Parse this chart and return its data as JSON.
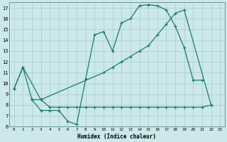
{
  "xlabel": "Humidex (Indice chaleur)",
  "bg_color": "#cce8eb",
  "grid_color": "#b0d4d8",
  "line_color": "#1a7a6e",
  "xlim": [
    -0.5,
    23.5
  ],
  "ylim": [
    6,
    17.5
  ],
  "yticks": [
    6,
    7,
    8,
    9,
    10,
    11,
    12,
    13,
    14,
    15,
    16,
    17
  ],
  "xtick_labels": [
    "0",
    "1",
    "2",
    "3",
    "4",
    "5",
    "6",
    "7",
    "8",
    "9",
    "10",
    "11",
    "12",
    "13",
    "14",
    "15",
    "16",
    "17",
    "18",
    "19",
    "20",
    "21",
    "22",
    "23"
  ],
  "line1_x": [
    0,
    1,
    2,
    3,
    4,
    5,
    6,
    7,
    8,
    9,
    10,
    11,
    12,
    13,
    14,
    15,
    16,
    17,
    18,
    19,
    20,
    21
  ],
  "line1_y": [
    9.5,
    11.5,
    8.5,
    7.5,
    7.5,
    7.5,
    6.5,
    6.2,
    10.4,
    14.5,
    14.8,
    13.0,
    15.6,
    16.0,
    17.2,
    17.3,
    17.2,
    16.8,
    15.3,
    13.3,
    10.3,
    10.3
  ],
  "line2_x": [
    2,
    3,
    4,
    5,
    6,
    7,
    8,
    9,
    10,
    11,
    12,
    13,
    14,
    15,
    16,
    17,
    18,
    19,
    20,
    21,
    22
  ],
  "line2_y": [
    8.5,
    8.5,
    7.8,
    7.8,
    7.8,
    7.8,
    7.8,
    7.8,
    7.8,
    7.8,
    7.8,
    7.8,
    7.8,
    7.8,
    7.8,
    7.8,
    7.8,
    7.8,
    7.8,
    7.8,
    8.0
  ],
  "line3_x": [
    0,
    1,
    3,
    10,
    11,
    12,
    13,
    14,
    15,
    16,
    17,
    18,
    19,
    22
  ],
  "line3_y": [
    9.5,
    11.5,
    8.5,
    11.0,
    11.5,
    12.0,
    12.5,
    13.0,
    13.5,
    14.5,
    15.5,
    16.5,
    16.8,
    8.0
  ]
}
